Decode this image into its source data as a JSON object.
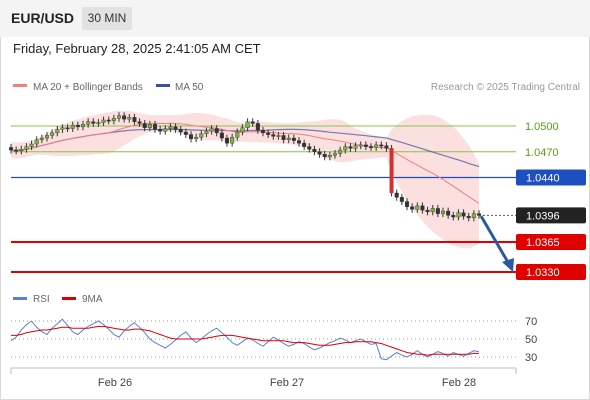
{
  "header": {
    "symbol": "EUR/USD",
    "timeframe": "30 MIN",
    "datetime": "Friday, February 28, 2025 2:41:05 AM CET"
  },
  "legend": {
    "items": [
      {
        "label": "MA 20 + Bollinger Bands",
        "color": "#f08080"
      },
      {
        "label": "MA 50",
        "color": "#3a4f9e"
      }
    ],
    "credit": "Research © 2025 Trading Central"
  },
  "chart_data": [
    {
      "type": "candlestick",
      "title": "",
      "x_ticks": [
        "Feb 26",
        "Feb 27",
        "Feb 28"
      ],
      "price_levels": [
        {
          "label": "1.0500",
          "value": 1.05,
          "kind": "resistance",
          "color": "#8bc34a"
        },
        {
          "label": "1.0470",
          "value": 1.047,
          "kind": "resistance",
          "color": "#8bc34a"
        },
        {
          "label": "1.0440",
          "value": 1.044,
          "kind": "pivot",
          "color": "#1e4fc0"
        },
        {
          "label": "1.0396",
          "value": 1.0396,
          "kind": "last",
          "color": "#222222"
        },
        {
          "label": "1.0365",
          "value": 1.0365,
          "kind": "target",
          "color": "#e00000"
        },
        {
          "label": "1.0330",
          "value": 1.033,
          "kind": "target",
          "color": "#e00000"
        }
      ],
      "ylim": [
        1.031,
        1.056
      ],
      "series": [
        {
          "name": "MA 20 + Bollinger Bands",
          "color": "#f08080"
        },
        {
          "name": "MA 50",
          "color": "#3a4f9e"
        }
      ],
      "close": [
        1.0472,
        1.0471,
        1.0473,
        1.0476,
        1.0479,
        1.0484,
        1.0486,
        1.0489,
        1.0492,
        1.0496,
        1.0498,
        1.0497,
        1.0501,
        1.0499,
        1.0502,
        1.0505,
        1.0503,
        1.0504,
        1.0507,
        1.0506,
        1.0509,
        1.0512,
        1.0508,
        1.051,
        1.0505,
        1.0503,
        1.0498,
        1.0502,
        1.0496,
        1.0494,
        1.0497,
        1.0499,
        1.0496,
        1.0493,
        1.049,
        1.0485,
        1.0487,
        1.0491,
        1.0494,
        1.0497,
        1.0492,
        1.0486,
        1.048,
        1.0487,
        1.0493,
        1.0498,
        1.0505,
        1.0503,
        1.0495,
        1.0492,
        1.049,
        1.0488,
        1.0489,
        1.0484,
        1.0486,
        1.0483,
        1.048,
        1.0476,
        1.0473,
        1.047,
        1.0467,
        1.0464,
        1.0466,
        1.0468,
        1.0472,
        1.0476,
        1.0474,
        1.0477,
        1.0478,
        1.0476,
        1.0475,
        1.0478,
        1.0477,
        1.0474,
        1.0422,
        1.0417,
        1.0412,
        1.0406,
        1.0403,
        1.0407,
        1.0402,
        1.04,
        1.0404,
        1.0398,
        1.0401,
        1.0396,
        1.0394,
        1.0399,
        1.0395,
        1.0393,
        1.0398,
        1.0396
      ],
      "rsi": {
        "levels": [
          70,
          50,
          30
        ],
        "series": [
          {
            "name": "RSI",
            "color": "#5b7fd6"
          },
          {
            "name": "9MA",
            "color": "#e00000"
          }
        ],
        "rsi": [
          48,
          52,
          60,
          66,
          70,
          63,
          58,
          55,
          62,
          67,
          72,
          65,
          58,
          55,
          60,
          64,
          67,
          70,
          66,
          61,
          55,
          52,
          59,
          64,
          68,
          63,
          57,
          50,
          46,
          43,
          40,
          44,
          49,
          54,
          58,
          51,
          46,
          50,
          55,
          59,
          62,
          57,
          52,
          46,
          43,
          47,
          51,
          49,
          45,
          42,
          47,
          52,
          49,
          45,
          42,
          44,
          47,
          45,
          41,
          38,
          40,
          43,
          46,
          48,
          51,
          49,
          46,
          48,
          50,
          47,
          44,
          45,
          28,
          27,
          31,
          35,
          32,
          30,
          33,
          37,
          33,
          30,
          33,
          36,
          34,
          31,
          35,
          33,
          31,
          34,
          37,
          36
        ],
        "ma9": [
          54,
          54,
          55,
          57,
          58,
          59,
          60,
          60,
          61,
          62,
          63,
          63,
          62,
          62,
          62,
          62,
          63,
          64,
          64,
          63,
          62,
          61,
          60,
          60,
          61,
          61,
          60,
          59,
          57,
          55,
          53,
          51,
          50,
          50,
          50,
          50,
          50,
          50,
          51,
          52,
          53,
          54,
          54,
          54,
          53,
          52,
          51,
          50,
          49,
          48,
          48,
          48,
          48,
          48,
          47,
          46,
          46,
          46,
          45,
          44,
          43,
          43,
          43,
          44,
          45,
          46,
          46,
          47,
          47,
          47,
          47,
          46,
          45,
          43,
          41,
          39,
          37,
          35,
          34,
          33,
          33,
          32,
          33,
          33,
          33,
          33,
          33,
          33,
          33,
          33,
          34,
          34
        ]
      }
    }
  ]
}
